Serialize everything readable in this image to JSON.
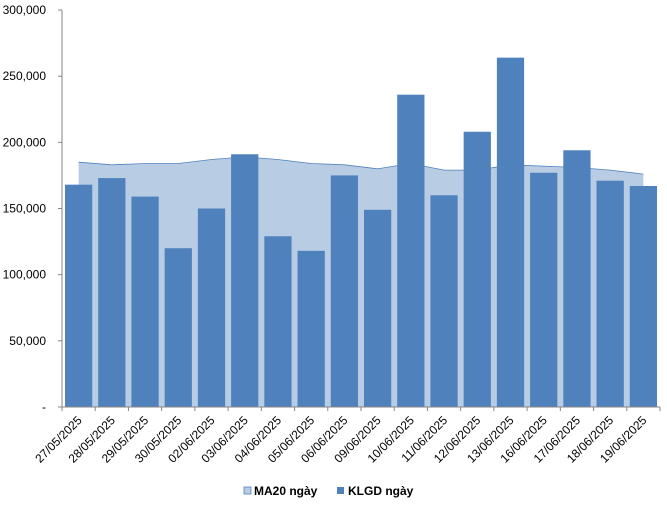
{
  "chart_data": {
    "type": "bar",
    "categories": [
      "27/05/2025",
      "28/05/2025",
      "29/05/2025",
      "30/05/2025",
      "02/06/2025",
      "03/06/2025",
      "04/06/2025",
      "05/06/2025",
      "06/06/2025",
      "09/06/2025",
      "10/06/2025",
      "11/06/2025",
      "12/06/2025",
      "13/06/2025",
      "16/06/2025",
      "17/06/2025",
      "18/06/2025",
      "19/06/2025"
    ],
    "series": [
      {
        "name": "MA20 ngày",
        "type": "area",
        "color": "#b8cce4",
        "edge_color": "#4f81bd",
        "values": [
          185000,
          183000,
          184000,
          184000,
          187000,
          189000,
          187000,
          184000,
          183000,
          180000,
          184000,
          179000,
          179000,
          183000,
          182000,
          181000,
          179000,
          176000
        ]
      },
      {
        "name": "KLGD ngày",
        "type": "bar",
        "color": "#4f81bd",
        "values": [
          168000,
          173000,
          159000,
          120000,
          150000,
          191000,
          129000,
          118000,
          175000,
          149000,
          236000,
          160000,
          208000,
          264000,
          177000,
          194000,
          171000,
          167000
        ]
      }
    ],
    "y_ticks": [
      "-",
      "50,000",
      "100,000",
      "150,000",
      "200,000",
      "250,000",
      "300,000"
    ],
    "ylim": [
      0,
      300000
    ],
    "legend_position": "bottom"
  }
}
